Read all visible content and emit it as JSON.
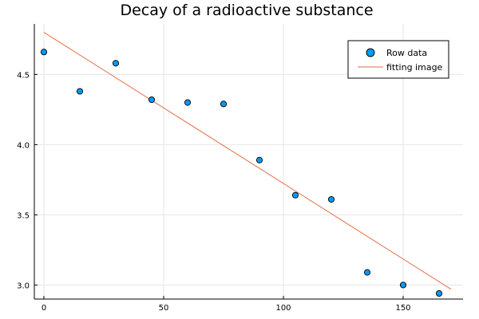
{
  "chart_data": {
    "type": "scatter",
    "title": "Decay of a radioactive substance",
    "xlabel": "",
    "ylabel": "",
    "xlim": [
      -4,
      175
    ],
    "ylim": [
      2.9,
      4.86
    ],
    "x_ticks": [
      0,
      50,
      100,
      150
    ],
    "y_ticks": [
      3.0,
      3.5,
      4.0,
      4.5
    ],
    "x_tick_labels": [
      "0",
      "50",
      "100",
      "150"
    ],
    "y_tick_labels": [
      "3.0",
      "3.5",
      "4.0",
      "4.5"
    ],
    "grid": true,
    "legend_position": "top-right",
    "series": [
      {
        "name": "Row data",
        "kind": "scatter",
        "color": "#009AFA",
        "points": [
          {
            "x": 0,
            "y": 4.66
          },
          {
            "x": 15,
            "y": 4.38
          },
          {
            "x": 30,
            "y": 4.58
          },
          {
            "x": 45,
            "y": 4.32
          },
          {
            "x": 60,
            "y": 4.3
          },
          {
            "x": 75,
            "y": 4.29
          },
          {
            "x": 90,
            "y": 3.89
          },
          {
            "x": 105,
            "y": 3.64
          },
          {
            "x": 120,
            "y": 3.61
          },
          {
            "x": 135,
            "y": 3.09
          },
          {
            "x": 150,
            "y": 3.0
          },
          {
            "x": 165,
            "y": 2.94
          }
        ]
      },
      {
        "name": "fitting image",
        "kind": "line",
        "color": "#E26F46",
        "points": [
          {
            "x": 0,
            "y": 4.8
          },
          {
            "x": 170,
            "y": 2.97
          }
        ]
      }
    ]
  }
}
